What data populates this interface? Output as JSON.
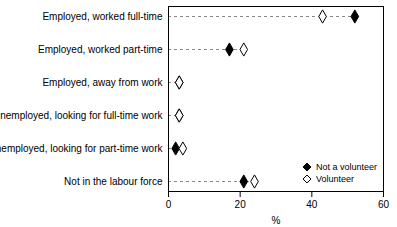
{
  "chart_data": {
    "type": "dot",
    "orientation": "horizontal",
    "categories": [
      "Employed, worked full-time",
      "Employed, worked part-time",
      "Employed, away from work",
      "Unemployed, looking for full-time work",
      "Unemployed, looking for part-time work",
      "Not in the labour force"
    ],
    "series": [
      {
        "name": "Not a volunteer",
        "color": "#000000",
        "marker": "diamond",
        "values": [
          52,
          17,
          3,
          3,
          2,
          21
        ]
      },
      {
        "name": "Volunteer",
        "color": "#000000",
        "marker": "diamond-open",
        "values": [
          43,
          21,
          3,
          3,
          4,
          24
        ]
      }
    ],
    "xlabel": "%",
    "xlim": [
      0,
      60
    ],
    "xticks": [
      0,
      20,
      40,
      60
    ],
    "grid": false,
    "line_style": "dashed",
    "legend": "bottom-right"
  }
}
